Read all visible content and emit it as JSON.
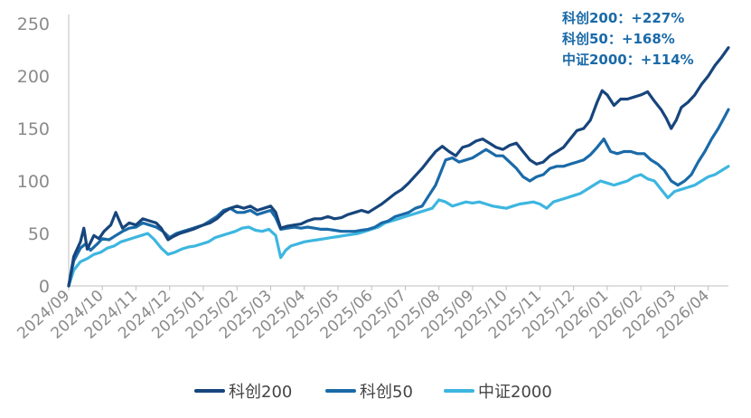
{
  "chart_data": {
    "type": "line",
    "title": "",
    "xlabel": "",
    "ylabel": "",
    "ylim": [
      0,
      250
    ],
    "yticks": [
      0,
      50,
      100,
      150,
      200,
      250
    ],
    "grid": false,
    "legend_position": "bottom",
    "categories": [
      "2024/09",
      "2024/10",
      "2024/11",
      "2024/12",
      "2025/01",
      "2025/02",
      "2025/03",
      "2025/04",
      "2025/05",
      "2025/06",
      "2025/07",
      "2025/08",
      "2025/09",
      "2025/10",
      "2025/11",
      "2025/12",
      "2026/01",
      "2026/02",
      "2026/03",
      "2026/04"
    ],
    "annotations": [
      "科创200：+227%",
      "科创50：+168%",
      "中证2000：+114%"
    ],
    "series": [
      {
        "name": "科创200",
        "color": "#17457c",
        "points": [
          [
            0,
            0
          ],
          [
            0.15,
            28
          ],
          [
            0.35,
            42
          ],
          [
            0.45,
            55
          ],
          [
            0.55,
            35
          ],
          [
            0.75,
            48
          ],
          [
            0.9,
            45
          ],
          [
            1.05,
            52
          ],
          [
            1.25,
            58
          ],
          [
            1.4,
            70
          ],
          [
            1.6,
            55
          ],
          [
            1.8,
            60
          ],
          [
            2.0,
            58
          ],
          [
            2.2,
            64
          ],
          [
            2.4,
            62
          ],
          [
            2.6,
            60
          ],
          [
            2.75,
            55
          ],
          [
            2.95,
            44
          ],
          [
            3.1,
            47
          ],
          [
            3.3,
            50
          ],
          [
            3.5,
            52
          ],
          [
            3.7,
            54
          ],
          [
            3.85,
            56
          ],
          [
            4.0,
            58
          ],
          [
            4.2,
            60
          ],
          [
            4.4,
            64
          ],
          [
            4.6,
            70
          ],
          [
            4.8,
            74
          ],
          [
            5.0,
            76
          ],
          [
            5.2,
            74
          ],
          [
            5.4,
            76
          ],
          [
            5.6,
            72
          ],
          [
            5.8,
            74
          ],
          [
            6.0,
            76
          ],
          [
            6.15,
            70
          ],
          [
            6.3,
            55
          ],
          [
            6.5,
            57
          ],
          [
            6.7,
            58
          ],
          [
            6.9,
            59
          ],
          [
            7.1,
            62
          ],
          [
            7.3,
            64
          ],
          [
            7.5,
            64
          ],
          [
            7.7,
            66
          ],
          [
            7.9,
            64
          ],
          [
            8.1,
            65
          ],
          [
            8.3,
            68
          ],
          [
            8.5,
            70
          ],
          [
            8.7,
            72
          ],
          [
            8.9,
            70
          ],
          [
            9.1,
            74
          ],
          [
            9.3,
            78
          ],
          [
            9.5,
            83
          ],
          [
            9.7,
            88
          ],
          [
            9.9,
            92
          ],
          [
            10.1,
            98
          ],
          [
            10.3,
            105
          ],
          [
            10.5,
            112
          ],
          [
            10.7,
            120
          ],
          [
            10.9,
            128
          ],
          [
            11.1,
            133
          ],
          [
            11.3,
            128
          ],
          [
            11.5,
            124
          ],
          [
            11.7,
            132
          ],
          [
            11.9,
            134
          ],
          [
            12.1,
            138
          ],
          [
            12.3,
            140
          ],
          [
            12.5,
            136
          ],
          [
            12.7,
            132
          ],
          [
            12.9,
            130
          ],
          [
            13.1,
            134
          ],
          [
            13.3,
            136
          ],
          [
            13.5,
            128
          ],
          [
            13.7,
            120
          ],
          [
            13.9,
            116
          ],
          [
            14.1,
            118
          ],
          [
            14.3,
            124
          ],
          [
            14.5,
            128
          ],
          [
            14.7,
            132
          ],
          [
            14.9,
            140
          ],
          [
            15.1,
            148
          ],
          [
            15.3,
            150
          ],
          [
            15.5,
            158
          ],
          [
            15.7,
            175
          ],
          [
            15.85,
            186
          ],
          [
            16.0,
            182
          ],
          [
            16.2,
            172
          ],
          [
            16.4,
            178
          ],
          [
            16.6,
            178
          ],
          [
            16.8,
            180
          ],
          [
            17.0,
            182
          ],
          [
            17.2,
            185
          ],
          [
            17.4,
            176
          ],
          [
            17.6,
            168
          ],
          [
            17.75,
            160
          ],
          [
            17.9,
            150
          ],
          [
            18.05,
            158
          ],
          [
            18.2,
            170
          ],
          [
            18.4,
            175
          ],
          [
            18.6,
            182
          ],
          [
            18.8,
            192
          ],
          [
            19.0,
            200
          ],
          [
            19.2,
            210
          ],
          [
            19.4,
            218
          ],
          [
            19.6,
            227
          ]
        ]
      },
      {
        "name": "科创50",
        "color": "#1a6aa8",
        "points": [
          [
            0,
            0
          ],
          [
            0.15,
            24
          ],
          [
            0.35,
            36
          ],
          [
            0.5,
            40
          ],
          [
            0.65,
            34
          ],
          [
            0.85,
            40
          ],
          [
            1.0,
            45
          ],
          [
            1.2,
            44
          ],
          [
            1.4,
            48
          ],
          [
            1.6,
            52
          ],
          [
            1.8,
            55
          ],
          [
            2.0,
            56
          ],
          [
            2.2,
            60
          ],
          [
            2.4,
            58
          ],
          [
            2.6,
            56
          ],
          [
            2.8,
            52
          ],
          [
            3.0,
            46
          ],
          [
            3.2,
            50
          ],
          [
            3.4,
            52
          ],
          [
            3.6,
            54
          ],
          [
            3.8,
            56
          ],
          [
            4.0,
            58
          ],
          [
            4.2,
            62
          ],
          [
            4.4,
            66
          ],
          [
            4.6,
            72
          ],
          [
            4.8,
            74
          ],
          [
            5.0,
            70
          ],
          [
            5.2,
            70
          ],
          [
            5.4,
            72
          ],
          [
            5.6,
            68
          ],
          [
            5.8,
            70
          ],
          [
            6.0,
            72
          ],
          [
            6.15,
            65
          ],
          [
            6.3,
            54
          ],
          [
            6.5,
            55
          ],
          [
            6.7,
            56
          ],
          [
            6.9,
            55
          ],
          [
            7.1,
            56
          ],
          [
            7.3,
            55
          ],
          [
            7.5,
            54
          ],
          [
            7.7,
            54
          ],
          [
            7.9,
            53
          ],
          [
            8.1,
            52
          ],
          [
            8.3,
            52
          ],
          [
            8.5,
            52
          ],
          [
            8.7,
            53
          ],
          [
            8.9,
            54
          ],
          [
            9.1,
            56
          ],
          [
            9.3,
            60
          ],
          [
            9.5,
            62
          ],
          [
            9.7,
            66
          ],
          [
            9.9,
            68
          ],
          [
            10.1,
            70
          ],
          [
            10.3,
            74
          ],
          [
            10.5,
            76
          ],
          [
            10.7,
            86
          ],
          [
            10.9,
            96
          ],
          [
            11.0,
            104
          ],
          [
            11.2,
            120
          ],
          [
            11.4,
            122
          ],
          [
            11.6,
            118
          ],
          [
            11.8,
            120
          ],
          [
            12.0,
            122
          ],
          [
            12.2,
            126
          ],
          [
            12.4,
            130
          ],
          [
            12.5,
            128
          ],
          [
            12.7,
            124
          ],
          [
            12.9,
            124
          ],
          [
            13.1,
            118
          ],
          [
            13.3,
            112
          ],
          [
            13.5,
            104
          ],
          [
            13.7,
            100
          ],
          [
            13.9,
            104
          ],
          [
            14.1,
            106
          ],
          [
            14.3,
            112
          ],
          [
            14.5,
            114
          ],
          [
            14.7,
            114
          ],
          [
            14.9,
            116
          ],
          [
            15.1,
            118
          ],
          [
            15.3,
            120
          ],
          [
            15.5,
            125
          ],
          [
            15.7,
            132
          ],
          [
            15.9,
            140
          ],
          [
            16.1,
            128
          ],
          [
            16.3,
            126
          ],
          [
            16.5,
            128
          ],
          [
            16.7,
            128
          ],
          [
            16.9,
            126
          ],
          [
            17.1,
            126
          ],
          [
            17.3,
            120
          ],
          [
            17.5,
            116
          ],
          [
            17.7,
            110
          ],
          [
            17.9,
            100
          ],
          [
            18.1,
            96
          ],
          [
            18.3,
            100
          ],
          [
            18.5,
            106
          ],
          [
            18.7,
            118
          ],
          [
            18.9,
            128
          ],
          [
            19.1,
            140
          ],
          [
            19.3,
            150
          ],
          [
            19.5,
            162
          ],
          [
            19.6,
            168
          ]
        ]
      },
      {
        "name": "中证2000",
        "color": "#3db6e0",
        "points": [
          [
            0,
            0
          ],
          [
            0.15,
            15
          ],
          [
            0.35,
            23
          ],
          [
            0.55,
            26
          ],
          [
            0.75,
            30
          ],
          [
            0.95,
            32
          ],
          [
            1.15,
            36
          ],
          [
            1.35,
            38
          ],
          [
            1.55,
            42
          ],
          [
            1.75,
            44
          ],
          [
            1.95,
            46
          ],
          [
            2.15,
            48
          ],
          [
            2.35,
            50
          ],
          [
            2.55,
            44
          ],
          [
            2.75,
            36
          ],
          [
            2.95,
            30
          ],
          [
            3.15,
            32
          ],
          [
            3.35,
            35
          ],
          [
            3.55,
            37
          ],
          [
            3.75,
            38
          ],
          [
            3.95,
            40
          ],
          [
            4.15,
            42
          ],
          [
            4.35,
            46
          ],
          [
            4.55,
            48
          ],
          [
            4.75,
            50
          ],
          [
            4.95,
            52
          ],
          [
            5.15,
            55
          ],
          [
            5.35,
            56
          ],
          [
            5.55,
            53
          ],
          [
            5.75,
            52
          ],
          [
            5.95,
            54
          ],
          [
            6.15,
            48
          ],
          [
            6.3,
            27
          ],
          [
            6.45,
            34
          ],
          [
            6.6,
            38
          ],
          [
            6.8,
            40
          ],
          [
            7.0,
            42
          ],
          [
            7.2,
            43
          ],
          [
            7.4,
            44
          ],
          [
            7.6,
            45
          ],
          [
            7.8,
            46
          ],
          [
            8.0,
            47
          ],
          [
            8.2,
            48
          ],
          [
            8.4,
            49
          ],
          [
            8.6,
            50
          ],
          [
            8.8,
            52
          ],
          [
            9.0,
            54
          ],
          [
            9.2,
            56
          ],
          [
            9.4,
            60
          ],
          [
            9.6,
            62
          ],
          [
            9.8,
            64
          ],
          [
            10.0,
            66
          ],
          [
            10.2,
            68
          ],
          [
            10.4,
            70
          ],
          [
            10.6,
            72
          ],
          [
            10.8,
            74
          ],
          [
            11.0,
            82
          ],
          [
            11.2,
            80
          ],
          [
            11.4,
            76
          ],
          [
            11.6,
            78
          ],
          [
            11.8,
            80
          ],
          [
            12.0,
            79
          ],
          [
            12.2,
            80
          ],
          [
            12.4,
            78
          ],
          [
            12.6,
            76
          ],
          [
            12.8,
            75
          ],
          [
            13.0,
            74
          ],
          [
            13.2,
            76
          ],
          [
            13.4,
            78
          ],
          [
            13.6,
            79
          ],
          [
            13.8,
            80
          ],
          [
            14.0,
            78
          ],
          [
            14.2,
            74
          ],
          [
            14.4,
            80
          ],
          [
            14.6,
            82
          ],
          [
            14.8,
            84
          ],
          [
            15.0,
            86
          ],
          [
            15.2,
            88
          ],
          [
            15.4,
            92
          ],
          [
            15.6,
            96
          ],
          [
            15.8,
            100
          ],
          [
            16.0,
            98
          ],
          [
            16.2,
            96
          ],
          [
            16.4,
            98
          ],
          [
            16.6,
            100
          ],
          [
            16.8,
            104
          ],
          [
            17.0,
            106
          ],
          [
            17.2,
            102
          ],
          [
            17.4,
            100
          ],
          [
            17.6,
            92
          ],
          [
            17.8,
            84
          ],
          [
            18.0,
            90
          ],
          [
            18.2,
            92
          ],
          [
            18.4,
            94
          ],
          [
            18.6,
            96
          ],
          [
            18.8,
            100
          ],
          [
            19.0,
            104
          ],
          [
            19.2,
            106
          ],
          [
            19.4,
            110
          ],
          [
            19.6,
            114
          ]
        ]
      }
    ]
  }
}
